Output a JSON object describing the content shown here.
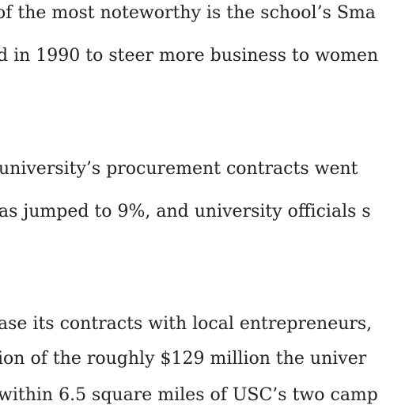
{
  "article": {
    "paragraphs": [
      {
        "lines": [
          "of the most noteworthy is the school’s Sma",
          "d in 1990 to steer more business to women"
        ]
      },
      {
        "lines": [
          " university’s procurement contracts went",
          "as jumped to 9%, and university officials s"
        ]
      },
      {
        "lines": [
          "ase its contracts with local entrepreneurs,",
          "ion of the roughly $129 million the univer",
          "within 6.5 square miles of USC’s two camp"
        ]
      }
    ]
  }
}
